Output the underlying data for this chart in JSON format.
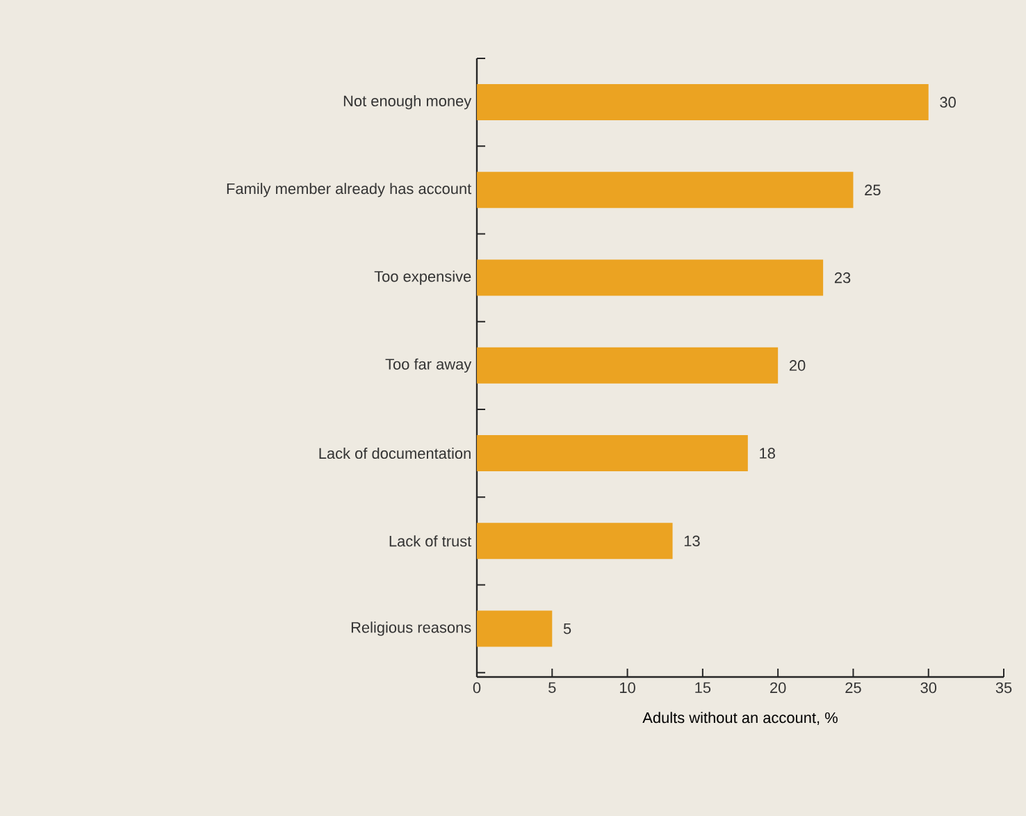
{
  "chart_data": {
    "type": "bar",
    "orientation": "horizontal",
    "xlabel": "Adults without an account, %",
    "categories": [
      "Not enough money",
      "Family member already has account",
      "Too expensive",
      "Too far away",
      "Lack of documentation",
      "Lack of trust",
      "Religious reasons"
    ],
    "values": [
      30,
      25,
      23,
      20,
      18,
      13,
      5
    ],
    "color": "#eba322",
    "data_labels": true,
    "xlim": [
      0,
      35
    ],
    "xticks": [
      0,
      5,
      10,
      15,
      20,
      25,
      30,
      35
    ]
  }
}
